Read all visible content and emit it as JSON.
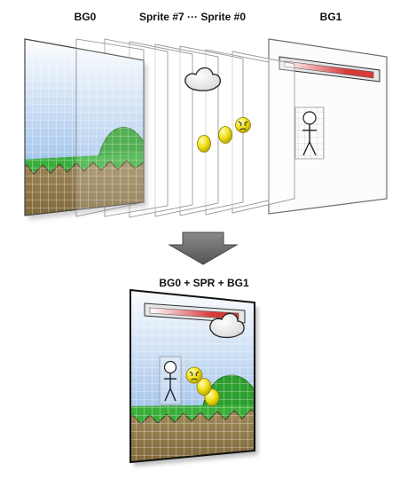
{
  "labels": {
    "bg0": "BG0",
    "sprites": "Sprite #7 ··· Sprite #0",
    "bg1": "BG1",
    "result": "BG0 + SPR + BG1"
  },
  "layers": [
    {
      "name": "BG0",
      "content": [
        "sky-gradient",
        "grid",
        "green-hill",
        "grass-strip",
        "zigzag-dirt"
      ]
    },
    {
      "name": "Sprite layers",
      "content": [
        "cloud-sprite",
        "coin-sprite",
        "coin-sprite",
        "angry-face-sprite"
      ]
    },
    {
      "name": "BG1",
      "content": [
        "health-bar",
        "stick-figure-tile"
      ]
    }
  ],
  "colors": {
    "sky_top": "#ffffff",
    "sky_bottom": "#7aa9e2",
    "grass": "#2e9e2e",
    "dirt": "#8a7446",
    "coin": "#f2e21a",
    "bar_red": "#d83a3a",
    "arrow": "#6e6e6e"
  }
}
